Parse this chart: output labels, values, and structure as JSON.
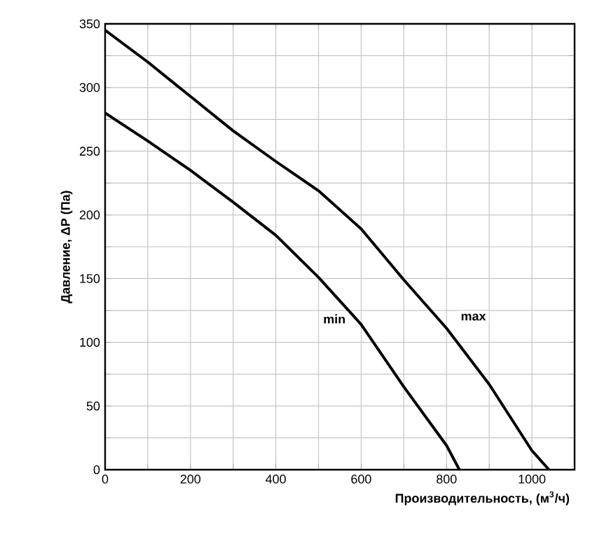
{
  "chart_data": {
    "type": "line",
    "xlabel": "Производительность, (м$^{3}$/ч)",
    "ylabel": "Давление, ΔP (Па)",
    "series": [
      {
        "name": "max",
        "color": "#000000",
        "x": [
          0,
          100,
          200,
          300,
          400,
          500,
          600,
          700,
          800,
          900,
          1000,
          1040
        ],
        "values": [
          345,
          320,
          293,
          266,
          242,
          219,
          189,
          149,
          111,
          67,
          15,
          0
        ]
      },
      {
        "name": "min",
        "color": "#000000",
        "x": [
          0,
          100,
          200,
          300,
          400,
          500,
          600,
          700,
          800,
          830
        ],
        "values": [
          280,
          258,
          235,
          210,
          184,
          151,
          114,
          65,
          19,
          0
        ]
      }
    ],
    "xlim": [
      0,
      1100
    ],
    "ylim": [
      0,
      350
    ],
    "xticks": [
      0,
      {
        "value": 100,
        "label": null
      },
      200,
      {
        "value": 300,
        "label": null
      },
      400,
      {
        "value": 500,
        "label": null
      },
      600,
      {
        "value": 700,
        "label": null
      },
      800,
      {
        "value": 900,
        "label": null
      },
      1000,
      {
        "value": 1100,
        "label": null
      }
    ],
    "yticks": [
      0,
      {
        "value": 25,
        "label": null
      },
      50,
      {
        "value": 75,
        "label": null
      },
      100,
      {
        "value": 125,
        "label": null
      },
      150,
      {
        "value": 175,
        "label": null
      },
      200,
      {
        "value": 225,
        "label": null
      },
      250,
      {
        "value": 275,
        "label": null
      },
      300,
      {
        "value": 325,
        "label": null
      },
      350
    ],
    "grid": true,
    "legend": false,
    "marker": "none",
    "line_style": "solid"
  }
}
